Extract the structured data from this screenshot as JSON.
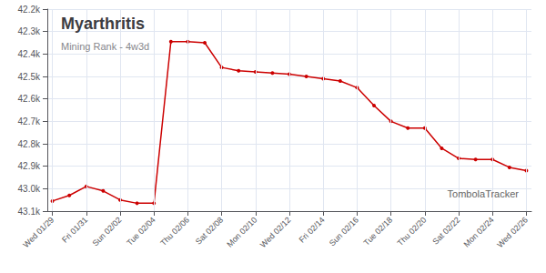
{
  "chart_data": {
    "type": "line",
    "title": "Myarthritis",
    "subtitle": "Mining Rank - 4w3d",
    "x": [
      0,
      1,
      2,
      3,
      4,
      5,
      6,
      7,
      8,
      9,
      10,
      11,
      12,
      13,
      14,
      15,
      16,
      17,
      18,
      19,
      20,
      21,
      22,
      23,
      24,
      25,
      26,
      27,
      28
    ],
    "values": [
      43055,
      43030,
      42990,
      43010,
      43050,
      43065,
      43065,
      42345,
      42345,
      42350,
      42460,
      42475,
      42480,
      42485,
      42490,
      42500,
      42510,
      42520,
      42550,
      42630,
      42700,
      42730,
      42730,
      42820,
      42865,
      42870,
      42870,
      42905,
      42920
    ],
    "color": "#cc0000",
    "marker": "circle",
    "xlim": [
      -0.3,
      28.3
    ],
    "xticks": [
      {
        "value": 0,
        "label": "Wed 01/29"
      },
      {
        "value": 2,
        "label": "Fri 01/31"
      },
      {
        "value": 4,
        "label": "Sun 02/02"
      },
      {
        "value": 6,
        "label": "Tue 02/04"
      },
      {
        "value": 8,
        "label": "Thu 02/06"
      },
      {
        "value": 10,
        "label": "Sat 02/08"
      },
      {
        "value": 12,
        "label": "Mon 02/10"
      },
      {
        "value": 14,
        "label": "Wed 02/12"
      },
      {
        "value": 16,
        "label": "Fri 02/14"
      },
      {
        "value": 18,
        "label": "Sun 02/16"
      },
      {
        "value": 20,
        "label": "Tue 02/18"
      },
      {
        "value": 22,
        "label": "Thu 02/20"
      },
      {
        "value": 24,
        "label": "Sat 02/22"
      },
      {
        "value": 26,
        "label": "Mon 02/24"
      },
      {
        "value": 28,
        "label": "Wed 02/26"
      }
    ],
    "ylim": [
      43100,
      42200
    ],
    "yticks": [
      {
        "value": 42200,
        "label": "42.2k"
      },
      {
        "value": 42300,
        "label": "42.3k"
      },
      {
        "value": 42400,
        "label": "42.4k"
      },
      {
        "value": 42500,
        "label": "42.5k"
      },
      {
        "value": 42600,
        "label": "42.6k"
      },
      {
        "value": 42700,
        "label": "42.7k"
      },
      {
        "value": 42800,
        "label": "42.8k"
      },
      {
        "value": 42900,
        "label": "42.9k"
      },
      {
        "value": 43000,
        "label": "43.0k"
      },
      {
        "value": 43100,
        "label": "43.1k"
      }
    ],
    "grid": true,
    "annotations": [
      "TombolaTracker"
    ]
  }
}
